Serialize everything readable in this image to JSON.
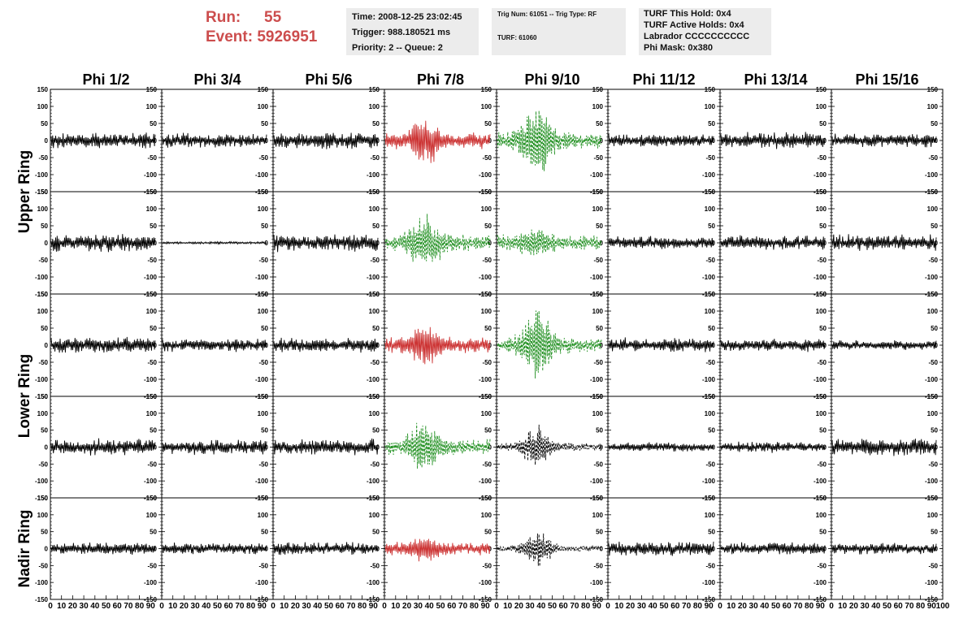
{
  "header": {
    "run_label": "Run:",
    "run_value": "55",
    "event_label": "Event:",
    "event_value": "5926951"
  },
  "info_time": {
    "time": "Time: 2008-12-25 23:02:45",
    "trigger": "Trigger: 988.180521 ms",
    "priority": "Priority: 2 -- Queue: 2"
  },
  "info_trig": {
    "trig": "Trig Num: 61051 -- Trig Type: RF",
    "turf": "TURF: 61060"
  },
  "info_turf": {
    "hold": "TURF This Hold: 0x4",
    "active": "TURF Active Holds: 0x4",
    "labrador": "Labrador CCCCCCCCCC",
    "phimask": "Phi Mask: 0x380"
  },
  "colors": {
    "accent": "#cc4d4d",
    "trace_black": "#000000",
    "trace_red": "#cc3333",
    "trace_green": "#1f8f1f",
    "box_bg": "#ececec"
  },
  "chart_data": {
    "type": "line",
    "columns": [
      "Phi 1/2",
      "Phi 3/4",
      "Phi 5/6",
      "Phi 7/8",
      "Phi 9/10",
      "Phi 11/12",
      "Phi 13/14",
      "Phi 15/16"
    ],
    "row_labels": [
      "Upper Ring",
      "Lower Ring",
      "Nadir Ring"
    ],
    "xlim": [
      0,
      100
    ],
    "ylim": [
      -150,
      150
    ],
    "yticks": [
      "150",
      "100",
      "50",
      "0",
      "-50",
      "-100",
      "-150"
    ],
    "xticks": [
      "0",
      "10",
      "20",
      "30",
      "40",
      "50",
      "60",
      "70",
      "80",
      "90",
      "100"
    ],
    "panels": [
      [
        {
          "style": "solid",
          "color": "black",
          "amplitude": 20,
          "burst": 0
        },
        {
          "style": "solid",
          "color": "black",
          "amplitude": 18,
          "burst": 0
        },
        {
          "style": "solid",
          "color": "black",
          "amplitude": 22,
          "burst": 0
        },
        {
          "style": "solid",
          "color": "red",
          "amplitude": 20,
          "burst": 60
        },
        {
          "style": "dashed",
          "color": "green",
          "amplitude": 22,
          "burst": 110
        },
        {
          "style": "solid",
          "color": "black",
          "amplitude": 16,
          "burst": 0
        },
        {
          "style": "solid",
          "color": "black",
          "amplitude": 20,
          "burst": 0
        },
        {
          "style": "solid",
          "color": "black",
          "amplitude": 18,
          "burst": 0
        }
      ],
      [
        {
          "style": "solid",
          "color": "black",
          "amplitude": 22,
          "burst": 0
        },
        {
          "style": "solid",
          "color": "black",
          "amplitude": 3,
          "burst": 0
        },
        {
          "style": "solid",
          "color": "black",
          "amplitude": 22,
          "burst": 0
        },
        {
          "style": "dashed",
          "color": "green",
          "amplitude": 22,
          "burst": 80
        },
        {
          "style": "dashed",
          "color": "green",
          "amplitude": 20,
          "burst": 35
        },
        {
          "style": "solid",
          "color": "black",
          "amplitude": 16,
          "burst": 0
        },
        {
          "style": "solid",
          "color": "black",
          "amplitude": 18,
          "burst": 0
        },
        {
          "style": "solid",
          "color": "black",
          "amplitude": 20,
          "burst": 0
        }
      ],
      [
        {
          "style": "solid",
          "color": "black",
          "amplitude": 20,
          "burst": 0
        },
        {
          "style": "solid",
          "color": "black",
          "amplitude": 16,
          "burst": 0
        },
        {
          "style": "solid",
          "color": "black",
          "amplitude": 18,
          "burst": 0
        },
        {
          "style": "solid",
          "color": "red",
          "amplitude": 22,
          "burst": 50
        },
        {
          "style": "dashed",
          "color": "green",
          "amplitude": 20,
          "burst": 100
        },
        {
          "style": "solid",
          "color": "black",
          "amplitude": 18,
          "burst": 0
        },
        {
          "style": "solid",
          "color": "black",
          "amplitude": 16,
          "burst": 0
        },
        {
          "style": "solid",
          "color": "black",
          "amplitude": 12,
          "burst": 0
        }
      ],
      [
        {
          "style": "solid",
          "color": "black",
          "amplitude": 20,
          "burst": 0
        },
        {
          "style": "solid",
          "color": "black",
          "amplitude": 18,
          "burst": 0
        },
        {
          "style": "solid",
          "color": "black",
          "amplitude": 20,
          "burst": 0
        },
        {
          "style": "dashed",
          "color": "green",
          "amplitude": 20,
          "burst": 85
        },
        {
          "style": "dashed",
          "color": "black",
          "amplitude": 10,
          "burst": 65
        },
        {
          "style": "solid",
          "color": "black",
          "amplitude": 12,
          "burst": 0
        },
        {
          "style": "solid",
          "color": "black",
          "amplitude": 14,
          "burst": 0
        },
        {
          "style": "solid",
          "color": "black",
          "amplitude": 22,
          "burst": 0
        }
      ],
      [
        {
          "style": "solid",
          "color": "black",
          "amplitude": 16,
          "burst": 0
        },
        {
          "style": "solid",
          "color": "black",
          "amplitude": 14,
          "burst": 0
        },
        {
          "style": "solid",
          "color": "black",
          "amplitude": 16,
          "burst": 0
        },
        {
          "style": "solid",
          "color": "red",
          "amplitude": 16,
          "burst": 30
        },
        {
          "style": "dashed",
          "color": "black",
          "amplitude": 8,
          "burst": 55
        },
        {
          "style": "solid",
          "color": "black",
          "amplitude": 18,
          "burst": 0
        },
        {
          "style": "solid",
          "color": "black",
          "amplitude": 16,
          "burst": 0
        },
        {
          "style": "solid",
          "color": "black",
          "amplitude": 14,
          "burst": 0
        }
      ]
    ]
  }
}
